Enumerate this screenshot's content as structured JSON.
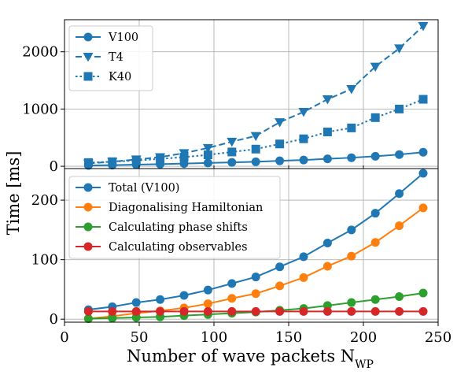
{
  "chart_data": [
    {
      "type": "line",
      "xlim": [
        0,
        250
      ],
      "ylim": [
        -40,
        2560
      ],
      "yticks": [
        0,
        1000,
        2000
      ],
      "grid": true,
      "legend_position": "top-left",
      "x": [
        16,
        32,
        48,
        64,
        80,
        96,
        112,
        128,
        144,
        160,
        176,
        192,
        208,
        224,
        240
      ],
      "series": [
        {
          "name": "V100",
          "color": "#1f77b4",
          "linestyle": "solid",
          "marker": "circle",
          "values": [
            15,
            20,
            28,
            38,
            48,
            58,
            68,
            78,
            95,
            110,
            130,
            150,
            175,
            205,
            245
          ]
        },
        {
          "name": "T4",
          "color": "#1f77b4",
          "linestyle": "dashed",
          "marker": "triangle-down",
          "values": [
            50,
            80,
            120,
            160,
            230,
            320,
            430,
            530,
            770,
            950,
            1170,
            1350,
            1740,
            2060,
            2450
          ]
        },
        {
          "name": "K40",
          "color": "#1f77b4",
          "linestyle": "dotted",
          "marker": "square",
          "values": [
            65,
            80,
            100,
            130,
            160,
            200,
            250,
            300,
            390,
            480,
            600,
            670,
            850,
            1000,
            1170
          ]
        }
      ]
    },
    {
      "type": "line",
      "xlim": [
        0,
        250
      ],
      "ylim": [
        -5,
        253
      ],
      "yticks": [
        0,
        100,
        200
      ],
      "xticks": [
        0,
        50,
        100,
        150,
        200,
        250
      ],
      "xlabel": "Number of wave packets N",
      "xlabel_sub": "WP",
      "ylabel": "Time [ms]",
      "grid": true,
      "legend_position": "top-left",
      "x": [
        16,
        32,
        48,
        64,
        80,
        96,
        112,
        128,
        144,
        160,
        176,
        192,
        208,
        224,
        240
      ],
      "series": [
        {
          "name": "Total (V100)",
          "color": "#1f77b4",
          "linestyle": "solid",
          "marker": "circle",
          "values": [
            16,
            21,
            28,
            33,
            40,
            49,
            60,
            71,
            88,
            105,
            128,
            150,
            178,
            211,
            245
          ]
        },
        {
          "name": "Diagonalising Hamiltonian",
          "color": "#ff7f0e",
          "linestyle": "solid",
          "marker": "circle",
          "values": [
            1,
            5,
            10,
            14,
            19,
            26,
            35,
            43,
            56,
            70,
            89,
            106,
            129,
            157,
            187
          ]
        },
        {
          "name": "Calculating phase shifts",
          "color": "#2ca02c",
          "linestyle": "solid",
          "marker": "circle",
          "values": [
            1,
            2,
            3,
            4,
            6,
            8,
            10,
            12,
            15,
            18,
            23,
            28,
            33,
            38,
            44
          ]
        },
        {
          "name": "Calculating observables",
          "color": "#d62728",
          "linestyle": "solid",
          "marker": "circle",
          "values": [
            13,
            13,
            13,
            13,
            13,
            13,
            13,
            13,
            13,
            13,
            13,
            13,
            13,
            13,
            13
          ]
        }
      ]
    }
  ]
}
